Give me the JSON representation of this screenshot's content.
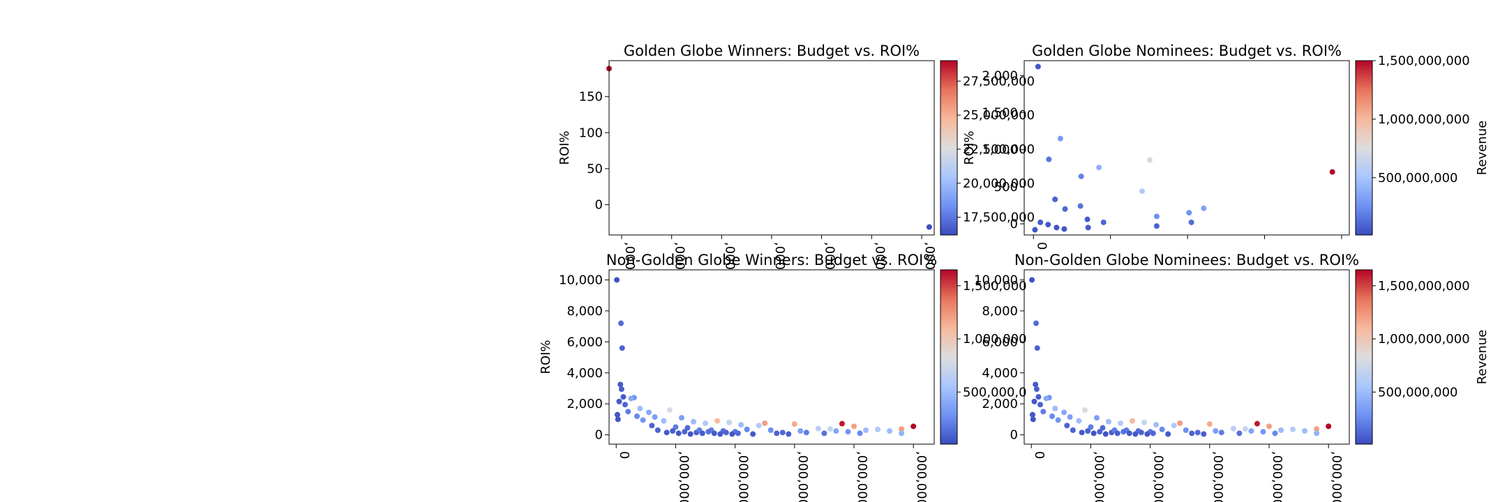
{
  "chart_data": [
    {
      "type": "scatter",
      "title": "Golden Globe Winners: Budget vs. ROI%",
      "xlabel": "",
      "ylabel": "ROI%",
      "x_tick_labels": [
        ",000",
        ",000",
        ",000",
        ",000",
        ",000",
        ",000",
        ",000"
      ],
      "y_ticks": [
        0,
        50,
        100,
        150
      ],
      "y_tick_labels": [
        "0",
        "50",
        "100",
        "150"
      ],
      "xlim": [
        0,
        6.6
      ],
      "ylim": [
        -42,
        200
      ],
      "colorbar": {
        "label": "",
        "min": 16200,
        "max": 29000,
        "ticks": [
          17500,
          20000,
          22500,
          25000,
          27500
        ],
        "tick_labels": [
          "17,500,000",
          "20,000,000",
          "22,500,000",
          "25,000,000",
          "27,500,000"
        ]
      },
      "points": [
        {
          "x": 0.0,
          "y": 189,
          "c": 29000
        },
        {
          "x": 6.5,
          "y": -31,
          "c": 16200
        }
      ]
    },
    {
      "type": "scatter",
      "title": "Golden Globe Nominees: Budget vs. ROI%",
      "xlabel": "",
      "ylabel": "ROI%",
      "x_tick_labels": [
        "0",
        "",
        "",
        "",
        ""
      ],
      "x_ticks": [
        0,
        1,
        2,
        3,
        4
      ],
      "y_ticks": [
        0,
        500,
        1000,
        1500,
        2000
      ],
      "y_tick_labels": [
        "0",
        "500",
        "1,000",
        "1,500",
        "2,000"
      ],
      "xlim": [
        -0.12,
        4.1
      ],
      "ylim": [
        -150,
        2200
      ],
      "colorbar": {
        "label": "Revenue",
        "min": 10000000,
        "max": 1500000000,
        "ticks": [
          500000000,
          1000000000,
          1500000000
        ],
        "tick_labels": [
          "500,000,000",
          "1,000,000,000",
          "1,500,000,000"
        ]
      },
      "points": [
        {
          "x": 0.06,
          "y": 2120,
          "c": 50000000
        },
        {
          "x": 0.35,
          "y": 1150,
          "c": 300000000
        },
        {
          "x": 0.2,
          "y": 870,
          "c": 160000000
        },
        {
          "x": 0.28,
          "y": 330,
          "c": 80000000
        },
        {
          "x": 0.41,
          "y": 200,
          "c": 110000000
        },
        {
          "x": 0.09,
          "y": 20,
          "c": 60000000
        },
        {
          "x": 0.02,
          "y": -80,
          "c": 40000000
        },
        {
          "x": 0.19,
          "y": -10,
          "c": 50000000
        },
        {
          "x": 0.3,
          "y": -50,
          "c": 40000000
        },
        {
          "x": 0.4,
          "y": -70,
          "c": 40000000
        },
        {
          "x": 0.62,
          "y": 640,
          "c": 200000000
        },
        {
          "x": 0.61,
          "y": 240,
          "c": 150000000
        },
        {
          "x": 0.7,
          "y": 60,
          "c": 60000000
        },
        {
          "x": 0.71,
          "y": -50,
          "c": 60000000
        },
        {
          "x": 0.85,
          "y": 760,
          "c": 400000000
        },
        {
          "x": 0.91,
          "y": 20,
          "c": 100000000
        },
        {
          "x": 1.41,
          "y": 440,
          "c": 550000000
        },
        {
          "x": 1.51,
          "y": 860,
          "c": 800000000
        },
        {
          "x": 1.6,
          "y": 100,
          "c": 250000000
        },
        {
          "x": 1.6,
          "y": -30,
          "c": 80000000
        },
        {
          "x": 2.02,
          "y": 150,
          "c": 260000000
        },
        {
          "x": 2.05,
          "y": 20,
          "c": 120000000
        },
        {
          "x": 2.21,
          "y": 210,
          "c": 330000000
        },
        {
          "x": 3.88,
          "y": 700,
          "c": 1500000000
        }
      ]
    },
    {
      "type": "scatter",
      "title": "Non-Golden Globe Winners: Budget vs. ROI%",
      "xlabel": "",
      "ylabel": "ROI%",
      "x_ticks": [
        0,
        100000000,
        200000000,
        300000000,
        400000000,
        500000000
      ],
      "x_tick_labels": [
        "0",
        ",000,000",
        ",000,000",
        ",000,000",
        ",000,000",
        ",000,000"
      ],
      "y_ticks": [
        0,
        2000,
        4000,
        6000,
        8000,
        10000
      ],
      "y_tick_labels": [
        "0",
        "2,000",
        "4,000",
        "6,000",
        "8,000",
        "10,000"
      ],
      "xlim": [
        -12000000,
        535000000
      ],
      "ylim": [
        -600,
        10650
      ],
      "colorbar": {
        "label": "",
        "min": 10000000,
        "max": 1650000000,
        "ticks": [
          500000000,
          1000000000,
          1500000000
        ],
        "tick_labels": [
          "500,000,0",
          "1,000,000",
          "1,500,000"
        ]
      },
      "points": [
        {
          "x": 1000000,
          "y": 10000,
          "c": 30000000
        },
        {
          "x": 8000000,
          "y": 7200,
          "c": 130000000
        },
        {
          "x": 10000000,
          "y": 5600,
          "c": 100000000
        },
        {
          "x": 7000000,
          "y": 3250,
          "c": 60000000
        },
        {
          "x": 9000000,
          "y": 2950,
          "c": 80000000
        },
        {
          "x": 12000000,
          "y": 2450,
          "c": 70000000
        },
        {
          "x": 30000000,
          "y": 2400,
          "c": 300000000
        },
        {
          "x": 25000000,
          "y": 2350,
          "c": 400000000
        },
        {
          "x": 5000000,
          "y": 2150,
          "c": 60000000
        },
        {
          "x": 15000000,
          "y": 1950,
          "c": 100000000
        },
        {
          "x": 40000000,
          "y": 1700,
          "c": 500000000
        },
        {
          "x": 90000000,
          "y": 1600,
          "c": 800000000
        },
        {
          "x": 20000000,
          "y": 1500,
          "c": 200000000
        },
        {
          "x": 55000000,
          "y": 1450,
          "c": 400000000
        },
        {
          "x": 2000000,
          "y": 1300,
          "c": 50000000
        },
        {
          "x": 35000000,
          "y": 1200,
          "c": 250000000
        },
        {
          "x": 65000000,
          "y": 1150,
          "c": 350000000
        },
        {
          "x": 110000000,
          "y": 1100,
          "c": 350000000
        },
        {
          "x": 3000000,
          "y": 1000,
          "c": 40000000
        },
        {
          "x": 45000000,
          "y": 950,
          "c": 300000000
        },
        {
          "x": 170000000,
          "y": 900,
          "c": 1100000000
        },
        {
          "x": 80000000,
          "y": 900,
          "c": 500000000
        },
        {
          "x": 130000000,
          "y": 850,
          "c": 500000000
        },
        {
          "x": 190000000,
          "y": 800,
          "c": 700000000
        },
        {
          "x": 150000000,
          "y": 750,
          "c": 600000000
        },
        {
          "x": 250000000,
          "y": 750,
          "c": 1200000000
        },
        {
          "x": 300000000,
          "y": 700,
          "c": 1150000000
        },
        {
          "x": 380000000,
          "y": 720,
          "c": 1600000000
        },
        {
          "x": 210000000,
          "y": 650,
          "c": 500000000
        },
        {
          "x": 240000000,
          "y": 600,
          "c": 600000000
        },
        {
          "x": 400000000,
          "y": 550,
          "c": 1200000000
        },
        {
          "x": 500000000,
          "y": 550,
          "c": 1650000000
        },
        {
          "x": 480000000,
          "y": 380,
          "c": 1200000000
        },
        {
          "x": 340000000,
          "y": 400,
          "c": 650000000
        },
        {
          "x": 360000000,
          "y": 380,
          "c": 700000000
        },
        {
          "x": 60000000,
          "y": 600,
          "c": 100000000
        },
        {
          "x": 100000000,
          "y": 500,
          "c": 200000000
        },
        {
          "x": 120000000,
          "y": 450,
          "c": 120000000
        },
        {
          "x": 160000000,
          "y": 300,
          "c": 200000000
        },
        {
          "x": 180000000,
          "y": 250,
          "c": 150000000
        },
        {
          "x": 200000000,
          "y": 200,
          "c": 180000000
        },
        {
          "x": 220000000,
          "y": 350,
          "c": 250000000
        },
        {
          "x": 260000000,
          "y": 300,
          "c": 280000000
        },
        {
          "x": 280000000,
          "y": 150,
          "c": 120000000
        },
        {
          "x": 310000000,
          "y": 250,
          "c": 350000000
        },
        {
          "x": 320000000,
          "y": 150,
          "c": 200000000
        },
        {
          "x": 350000000,
          "y": 100,
          "c": 150000000
        },
        {
          "x": 370000000,
          "y": 250,
          "c": 380000000
        },
        {
          "x": 390000000,
          "y": 200,
          "c": 300000000
        },
        {
          "x": 410000000,
          "y": 100,
          "c": 250000000
        },
        {
          "x": 420000000,
          "y": 300,
          "c": 500000000
        },
        {
          "x": 440000000,
          "y": 350,
          "c": 600000000
        },
        {
          "x": 460000000,
          "y": 250,
          "c": 500000000
        },
        {
          "x": 480000000,
          "y": 100,
          "c": 450000000
        },
        {
          "x": 70000000,
          "y": 300,
          "c": 100000000
        },
        {
          "x": 85000000,
          "y": 150,
          "c": 60000000
        },
        {
          "x": 95000000,
          "y": 250,
          "c": 90000000
        },
        {
          "x": 105000000,
          "y": 100,
          "c": 50000000
        },
        {
          "x": 115000000,
          "y": 200,
          "c": 100000000
        },
        {
          "x": 125000000,
          "y": 50,
          "c": 40000000
        },
        {
          "x": 135000000,
          "y": 150,
          "c": 90000000
        },
        {
          "x": 140000000,
          "y": 300,
          "c": 200000000
        },
        {
          "x": 145000000,
          "y": 100,
          "c": 80000000
        },
        {
          "x": 155000000,
          "y": 200,
          "c": 150000000
        },
        {
          "x": 165000000,
          "y": 100,
          "c": 70000000
        },
        {
          "x": 175000000,
          "y": 50,
          "c": 60000000
        },
        {
          "x": 185000000,
          "y": 150,
          "c": 100000000
        },
        {
          "x": 195000000,
          "y": 50,
          "c": 50000000
        },
        {
          "x": 205000000,
          "y": 100,
          "c": 120000000
        },
        {
          "x": 230000000,
          "y": 50,
          "c": 60000000
        },
        {
          "x": 270000000,
          "y": 100,
          "c": 100000000
        },
        {
          "x": 290000000,
          "y": 50,
          "c": 80000000
        }
      ]
    },
    {
      "type": "scatter",
      "title": "Non-Golden Globe Nominees: Budget vs. ROI%",
      "xlabel": "",
      "ylabel": "",
      "x_ticks": [
        0,
        100000000,
        200000000,
        300000000,
        400000000,
        500000000
      ],
      "x_tick_labels": [
        "0",
        ",000,000",
        ",000,000",
        ",000,000",
        ",000,000",
        ",000,000"
      ],
      "y_ticks": [
        0,
        2000,
        4000,
        6000,
        8000,
        10000
      ],
      "y_tick_labels": [
        "0",
        "2,000",
        "4,000",
        "6,000",
        "8,000",
        "10,000"
      ],
      "xlim": [
        -12000000,
        535000000
      ],
      "ylim": [
        -600,
        10650
      ],
      "colorbar": {
        "label": "Revenue",
        "min": 10000000,
        "max": 1650000000,
        "ticks": [
          500000000,
          1000000000,
          1500000000
        ],
        "tick_labels": [
          "500,000,000",
          "1,000,000,000",
          "1,500,000,000"
        ]
      },
      "points": [
        {
          "x": 1000000,
          "y": 10000,
          "c": 30000000
        },
        {
          "x": 8000000,
          "y": 7200,
          "c": 130000000
        },
        {
          "x": 10000000,
          "y": 5600,
          "c": 100000000
        },
        {
          "x": 7000000,
          "y": 3250,
          "c": 60000000
        },
        {
          "x": 9000000,
          "y": 2950,
          "c": 80000000
        },
        {
          "x": 12000000,
          "y": 2450,
          "c": 70000000
        },
        {
          "x": 30000000,
          "y": 2400,
          "c": 300000000
        },
        {
          "x": 25000000,
          "y": 2350,
          "c": 400000000
        },
        {
          "x": 5000000,
          "y": 2150,
          "c": 60000000
        },
        {
          "x": 15000000,
          "y": 1950,
          "c": 100000000
        },
        {
          "x": 40000000,
          "y": 1700,
          "c": 500000000
        },
        {
          "x": 90000000,
          "y": 1600,
          "c": 800000000
        },
        {
          "x": 20000000,
          "y": 1500,
          "c": 200000000
        },
        {
          "x": 55000000,
          "y": 1450,
          "c": 400000000
        },
        {
          "x": 2000000,
          "y": 1300,
          "c": 50000000
        },
        {
          "x": 35000000,
          "y": 1200,
          "c": 250000000
        },
        {
          "x": 65000000,
          "y": 1150,
          "c": 350000000
        },
        {
          "x": 110000000,
          "y": 1100,
          "c": 350000000
        },
        {
          "x": 3000000,
          "y": 1000,
          "c": 40000000
        },
        {
          "x": 45000000,
          "y": 950,
          "c": 300000000
        },
        {
          "x": 170000000,
          "y": 900,
          "c": 1100000000
        },
        {
          "x": 80000000,
          "y": 900,
          "c": 500000000
        },
        {
          "x": 130000000,
          "y": 850,
          "c": 500000000
        },
        {
          "x": 190000000,
          "y": 800,
          "c": 700000000
        },
        {
          "x": 150000000,
          "y": 750,
          "c": 600000000
        },
        {
          "x": 250000000,
          "y": 750,
          "c": 1200000000
        },
        {
          "x": 300000000,
          "y": 700,
          "c": 1150000000
        },
        {
          "x": 380000000,
          "y": 720,
          "c": 1600000000
        },
        {
          "x": 210000000,
          "y": 650,
          "c": 500000000
        },
        {
          "x": 240000000,
          "y": 600,
          "c": 600000000
        },
        {
          "x": 400000000,
          "y": 550,
          "c": 1200000000
        },
        {
          "x": 500000000,
          "y": 550,
          "c": 1650000000
        },
        {
          "x": 480000000,
          "y": 380,
          "c": 1200000000
        },
        {
          "x": 340000000,
          "y": 400,
          "c": 650000000
        },
        {
          "x": 360000000,
          "y": 380,
          "c": 700000000
        },
        {
          "x": 60000000,
          "y": 600,
          "c": 100000000
        },
        {
          "x": 100000000,
          "y": 500,
          "c": 200000000
        },
        {
          "x": 120000000,
          "y": 450,
          "c": 120000000
        },
        {
          "x": 160000000,
          "y": 300,
          "c": 200000000
        },
        {
          "x": 180000000,
          "y": 250,
          "c": 150000000
        },
        {
          "x": 200000000,
          "y": 200,
          "c": 180000000
        },
        {
          "x": 220000000,
          "y": 350,
          "c": 250000000
        },
        {
          "x": 260000000,
          "y": 300,
          "c": 280000000
        },
        {
          "x": 280000000,
          "y": 150,
          "c": 120000000
        },
        {
          "x": 310000000,
          "y": 250,
          "c": 350000000
        },
        {
          "x": 320000000,
          "y": 150,
          "c": 200000000
        },
        {
          "x": 350000000,
          "y": 100,
          "c": 150000000
        },
        {
          "x": 370000000,
          "y": 250,
          "c": 380000000
        },
        {
          "x": 390000000,
          "y": 200,
          "c": 300000000
        },
        {
          "x": 410000000,
          "y": 100,
          "c": 250000000
        },
        {
          "x": 420000000,
          "y": 300,
          "c": 500000000
        },
        {
          "x": 440000000,
          "y": 350,
          "c": 600000000
        },
        {
          "x": 460000000,
          "y": 250,
          "c": 500000000
        },
        {
          "x": 480000000,
          "y": 100,
          "c": 450000000
        },
        {
          "x": 70000000,
          "y": 300,
          "c": 100000000
        },
        {
          "x": 85000000,
          "y": 150,
          "c": 60000000
        },
        {
          "x": 95000000,
          "y": 250,
          "c": 90000000
        },
        {
          "x": 105000000,
          "y": 100,
          "c": 50000000
        },
        {
          "x": 115000000,
          "y": 200,
          "c": 100000000
        },
        {
          "x": 125000000,
          "y": 50,
          "c": 40000000
        },
        {
          "x": 135000000,
          "y": 150,
          "c": 90000000
        },
        {
          "x": 140000000,
          "y": 300,
          "c": 200000000
        },
        {
          "x": 145000000,
          "y": 100,
          "c": 80000000
        },
        {
          "x": 155000000,
          "y": 200,
          "c": 150000000
        },
        {
          "x": 165000000,
          "y": 100,
          "c": 70000000
        },
        {
          "x": 175000000,
          "y": 50,
          "c": 60000000
        },
        {
          "x": 185000000,
          "y": 150,
          "c": 100000000
        },
        {
          "x": 195000000,
          "y": 50,
          "c": 50000000
        },
        {
          "x": 205000000,
          "y": 100,
          "c": 120000000
        },
        {
          "x": 230000000,
          "y": 50,
          "c": 60000000
        },
        {
          "x": 270000000,
          "y": 100,
          "c": 100000000
        },
        {
          "x": 290000000,
          "y": 50,
          "c": 80000000
        }
      ]
    }
  ],
  "colormap": [
    "#3b4cc0",
    "#6f92f3",
    "#aac7fd",
    "#dddddd",
    "#f7b89c",
    "#e7745b",
    "#b40426"
  ]
}
